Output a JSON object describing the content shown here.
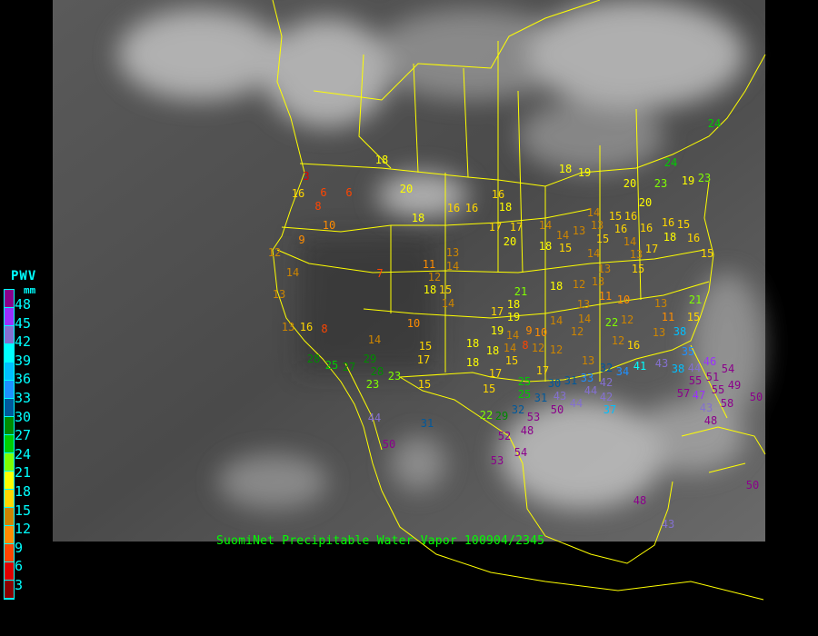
{
  "caption": "SuomiNet Precipitable Water Vapor 100904/2345",
  "legend": {
    "title": "PWV",
    "unit": "mm",
    "ticks": [
      "48",
      "45",
      "42",
      "39",
      "36",
      "33",
      "30",
      "27",
      "24",
      "21",
      "18",
      "15",
      "12",
      "9",
      "6",
      "3"
    ],
    "colors": [
      "#8b008b",
      "#9b30ff",
      "#8470d0",
      "#00ffff",
      "#00bfff",
      "#1e90ff",
      "#00599c",
      "#008b00",
      "#00cd00",
      "#7fff00",
      "#ffff00",
      "#ffd700",
      "#cd8500",
      "#ff8c00",
      "#ff4500",
      "#e00000",
      "#8b0000"
    ]
  },
  "map": {
    "background": "infrared satellite imagery",
    "outline_color": "#ffff00"
  },
  "stations": [
    "3",
    "16",
    "6",
    "6",
    "8",
    "20",
    "18",
    "16",
    "16",
    "16",
    "18",
    "10",
    "17",
    "17",
    "20",
    "9",
    "12",
    "14",
    "13",
    "11",
    "12",
    "14",
    "7",
    "15",
    "18",
    "14",
    "13",
    "21",
    "18",
    "17",
    "19",
    "10",
    "13",
    "16",
    "8",
    "19",
    "14",
    "9",
    "8",
    "14",
    "15",
    "17",
    "18",
    "18",
    "14",
    "15",
    "18",
    "17",
    "25",
    "29",
    "28",
    "23",
    "23",
    "28",
    "25",
    "27",
    "15",
    "18",
    "19",
    "24",
    "23",
    "19",
    "23",
    "20",
    "20",
    "14",
    "14",
    "13",
    "18",
    "15",
    "14",
    "13",
    "15",
    "16",
    "15",
    "16",
    "16",
    "16",
    "15",
    "18",
    "16",
    "14",
    "13",
    "17",
    "15",
    "14",
    "13",
    "13",
    "15",
    "18",
    "12",
    "11",
    "10",
    "13",
    "14",
    "14",
    "12",
    "13",
    "11",
    "15",
    "21",
    "22",
    "12",
    "13",
    "38",
    "12",
    "16",
    "12",
    "12",
    "10",
    "13",
    "35",
    "32",
    "34",
    "41",
    "43",
    "38",
    "44",
    "46",
    "17",
    "55",
    "51",
    "54",
    "25",
    "30",
    "31",
    "33",
    "44",
    "42",
    "42",
    "47",
    "57",
    "55",
    "49",
    "58",
    "15",
    "31",
    "43",
    "44",
    "37",
    "43",
    "48",
    "50",
    "22",
    "29",
    "32",
    "53",
    "48",
    "52",
    "54",
    "53",
    "50",
    "18",
    "24",
    "44",
    "31",
    "50",
    "48",
    "43",
    "50"
  ]
}
